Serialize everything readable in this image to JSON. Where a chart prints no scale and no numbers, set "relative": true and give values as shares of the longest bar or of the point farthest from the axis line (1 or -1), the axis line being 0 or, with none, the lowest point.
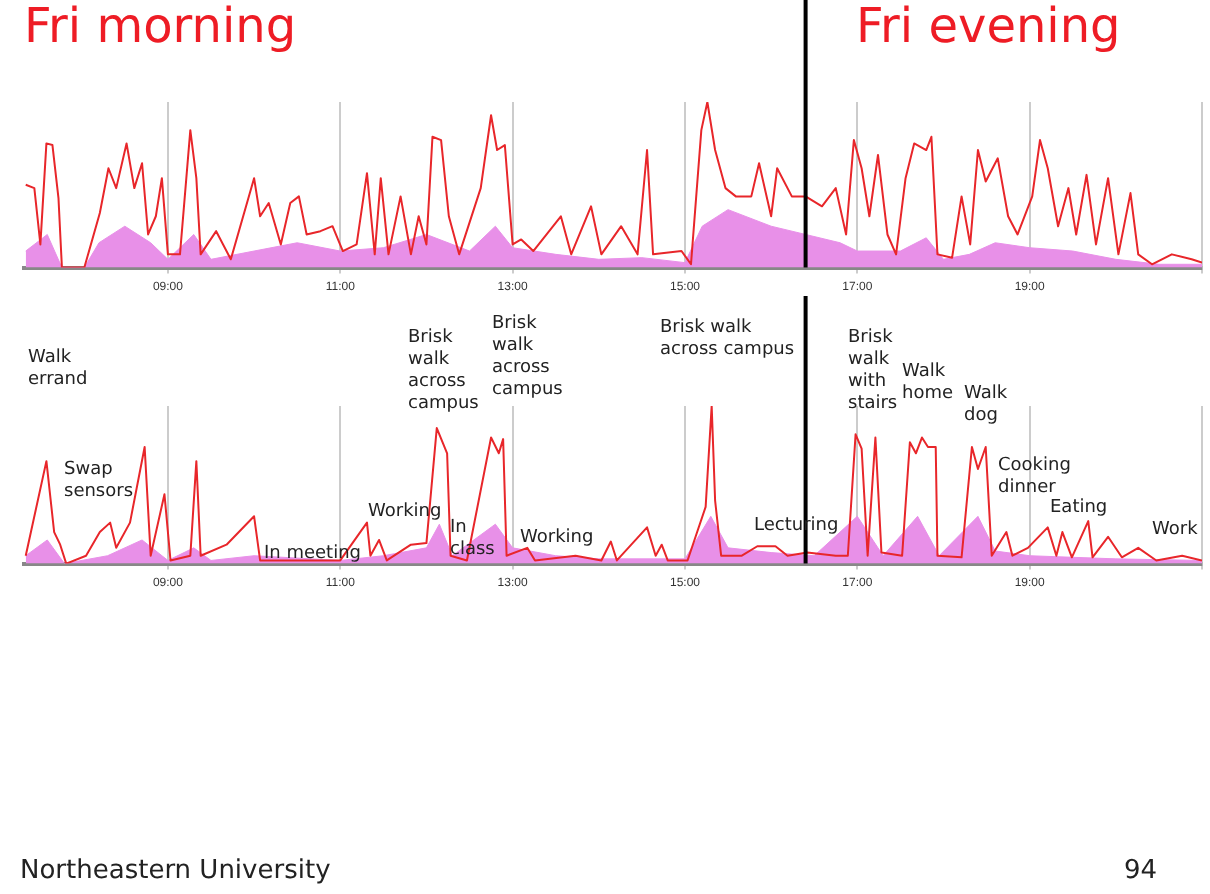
{
  "chart_data": [
    {
      "type": "line",
      "relative": true,
      "grid": "x",
      "legend": false,
      "marker": "none",
      "xlim": [
        7.33,
        21
      ],
      "xticks": [
        {
          "value": 9,
          "label": "09:00"
        },
        {
          "value": 11,
          "label": "11:00"
        },
        {
          "value": 13,
          "label": "13:00"
        },
        {
          "value": 15,
          "label": "15:00"
        },
        {
          "value": 17,
          "label": "17:00"
        },
        {
          "value": 19,
          "label": "19:00"
        },
        {
          "value": 21,
          "label": null
        }
      ],
      "ref_lines": [
        {
          "axis": "x",
          "value": 16.4,
          "color": "#000000"
        }
      ],
      "annotations": [
        "Fri morning",
        "Fri evening"
      ],
      "series": [
        {
          "type": "area",
          "color": "#e890e8",
          "x": [
            7.35,
            7.6,
            7.77,
            8.03,
            8.2,
            8.5,
            8.8,
            9.0,
            9.3,
            9.5,
            10.0,
            10.5,
            11.0,
            11.5,
            12.0,
            12.5,
            12.8,
            13.0,
            13.5,
            14.0,
            14.5,
            15.0,
            15.2,
            15.5,
            16.0,
            16.4,
            16.8,
            17.0,
            17.5,
            17.8,
            18.0,
            18.3,
            18.6,
            19.0,
            19.5,
            20.0,
            20.5,
            21.0
          ],
          "values": [
            0.1,
            0.2,
            0,
            0,
            0.15,
            0.25,
            0.15,
            0.05,
            0.2,
            0.05,
            0.1,
            0.15,
            0.1,
            0.12,
            0.2,
            0.1,
            0.25,
            0.12,
            0.08,
            0.05,
            0.06,
            0.03,
            0.25,
            0.35,
            0.25,
            0.2,
            0.15,
            0.1,
            0.1,
            0.18,
            0.05,
            0.08,
            0.15,
            0.12,
            0.1,
            0.05,
            0.02,
            0.02
          ]
        },
        {
          "type": "line",
          "color": "#e8262a",
          "x": [
            7.35,
            7.45,
            7.52,
            7.59,
            7.66,
            7.73,
            7.77,
            8.03,
            8.21,
            8.31,
            8.4,
            8.52,
            8.61,
            8.7,
            8.77,
            8.86,
            8.93,
            9.0,
            9.14,
            9.26,
            9.33,
            9.38,
            9.56,
            9.73,
            10.0,
            10.07,
            10.17,
            10.31,
            10.42,
            10.52,
            10.61,
            10.77,
            10.91,
            11.03,
            11.19,
            11.31,
            11.4,
            11.47,
            11.56,
            11.7,
            11.82,
            11.91,
            12.0,
            12.07,
            12.17,
            12.26,
            12.38,
            12.63,
            12.75,
            12.82,
            12.91,
            13.0,
            13.1,
            13.24,
            13.56,
            13.68,
            13.91,
            14.03,
            14.26,
            14.45,
            14.56,
            14.63,
            14.96,
            15.07,
            15.19,
            15.26,
            15.35,
            15.47,
            15.59,
            15.77,
            15.86,
            16.0,
            16.07,
            16.24,
            16.4,
            16.59,
            16.75,
            16.87,
            16.96,
            17.05,
            17.14,
            17.24,
            17.35,
            17.45,
            17.56,
            17.66,
            17.8,
            17.86,
            17.93,
            18.1,
            18.21,
            18.31,
            18.4,
            18.49,
            18.63,
            18.75,
            18.86,
            19.03,
            19.12,
            19.21,
            19.33,
            19.45,
            19.54,
            19.66,
            19.77,
            19.91,
            20.03,
            20.17,
            20.26,
            20.42,
            20.65,
            20.88,
            21.0
          ],
          "values": [
            0.5,
            0.48,
            0.14,
            0.75,
            0.74,
            0.42,
            0,
            0,
            0.33,
            0.6,
            0.48,
            0.75,
            0.48,
            0.63,
            0.2,
            0.31,
            0.54,
            0.08,
            0.08,
            0.83,
            0.54,
            0.08,
            0.22,
            0.05,
            0.54,
            0.31,
            0.39,
            0.14,
            0.39,
            0.43,
            0.2,
            0.22,
            0.25,
            0.1,
            0.14,
            0.57,
            0.08,
            0.54,
            0.08,
            0.43,
            0.08,
            0.31,
            0.14,
            0.79,
            0.77,
            0.31,
            0.08,
            0.48,
            0.92,
            0.71,
            0.74,
            0.14,
            0.17,
            0.1,
            0.31,
            0.08,
            0.37,
            0.08,
            0.25,
            0.08,
            0.71,
            0.08,
            0.1,
            0.02,
            0.83,
            1,
            0.71,
            0.48,
            0.43,
            0.43,
            0.63,
            0.31,
            0.6,
            0.43,
            0.43,
            0.37,
            0.48,
            0.2,
            0.77,
            0.6,
            0.31,
            0.68,
            0.2,
            0.08,
            0.54,
            0.75,
            0.71,
            0.79,
            0.08,
            0.06,
            0.43,
            0.14,
            0.71,
            0.52,
            0.66,
            0.31,
            0.2,
            0.43,
            0.77,
            0.6,
            0.25,
            0.48,
            0.2,
            0.56,
            0.14,
            0.54,
            0.08,
            0.45,
            0.08,
            0.02,
            0.08,
            0.05,
            0.03
          ]
        }
      ]
    },
    {
      "type": "line",
      "relative": true,
      "grid": "x",
      "legend": false,
      "marker": "none",
      "xlim": [
        7.33,
        21
      ],
      "xticks": [
        {
          "value": 9,
          "label": "09:00"
        },
        {
          "value": 11,
          "label": "11:00"
        },
        {
          "value": 13,
          "label": "13:00"
        },
        {
          "value": 15,
          "label": "15:00"
        },
        {
          "value": 17,
          "label": "17:00"
        },
        {
          "value": 19,
          "label": "19:00"
        },
        {
          "value": 21,
          "label": null
        }
      ],
      "ref_lines": [
        {
          "axis": "x",
          "value": 16.4,
          "color": "#000000"
        }
      ],
      "annotations": [
        "Walk\nerrand",
        "Swap\nsensors",
        "In meeting",
        "Working",
        "Brisk\nwalk\nacross\ncampus",
        "In\nclass",
        "Brisk\nwalk\nacross\ncampus",
        "Working",
        "Brisk walk\nacross campus",
        "Lecturing",
        "Brisk\nwalk\nwith\nstairs",
        "Walk\nhome",
        "Walk\ndog",
        "Cooking\ndinner",
        "Eating",
        "Work",
        "Northeastern University",
        "94"
      ],
      "series": [
        {
          "type": "area",
          "color": "#e890e8",
          "x": [
            7.35,
            7.6,
            7.8,
            8.3,
            8.7,
            9.0,
            9.3,
            9.5,
            10.0,
            11.0,
            11.5,
            12.0,
            12.15,
            12.3,
            12.8,
            13.0,
            13.5,
            14.0,
            15.0,
            15.3,
            15.5,
            16.0,
            16.5,
            17.0,
            17.3,
            17.7,
            17.95,
            18.4,
            18.6,
            19.0,
            20.0,
            21.0
          ],
          "values": [
            0.05,
            0.15,
            0,
            0.05,
            0.15,
            0.02,
            0.1,
            0.02,
            0.05,
            0.02,
            0.05,
            0.1,
            0.25,
            0.05,
            0.25,
            0.1,
            0.05,
            0.03,
            0.03,
            0.3,
            0.1,
            0.07,
            0.05,
            0.3,
            0.05,
            0.3,
            0.05,
            0.3,
            0.08,
            0.05,
            0.03,
            0.02
          ]
        },
        {
          "type": "line",
          "color": "#e8262a",
          "x": [
            7.35,
            7.59,
            7.68,
            7.75,
            7.82,
            8.05,
            8.21,
            8.33,
            8.4,
            8.56,
            8.73,
            8.8,
            8.96,
            9.03,
            9.26,
            9.33,
            9.38,
            9.68,
            10.0,
            10.07,
            10.54,
            11.0,
            11.31,
            11.35,
            11.45,
            11.54,
            11.82,
            12.0,
            12.12,
            12.24,
            12.28,
            12.47,
            12.75,
            12.84,
            12.89,
            12.93,
            13.17,
            13.26,
            13.73,
            14.03,
            14.14,
            14.21,
            14.56,
            14.66,
            14.73,
            14.8,
            15.03,
            15.24,
            15.31,
            15.35,
            15.42,
            15.66,
            15.84,
            16.05,
            16.19,
            16.42,
            16.75,
            16.89,
            16.98,
            17.05,
            17.12,
            17.21,
            17.28,
            17.52,
            17.61,
            17.68,
            17.75,
            17.82,
            17.91,
            17.93,
            18.21,
            18.33,
            18.4,
            18.49,
            18.56,
            18.73,
            18.8,
            18.98,
            19.21,
            19.31,
            19.38,
            19.49,
            19.68,
            19.73,
            19.91,
            20.07,
            20.26,
            20.47,
            20.77,
            21.0
          ],
          "values": [
            0.05,
            0.65,
            0.2,
            0.12,
            0,
            0.05,
            0.2,
            0.26,
            0.1,
            0.26,
            0.74,
            0.05,
            0.44,
            0.02,
            0.05,
            0.65,
            0.05,
            0.12,
            0.3,
            0.02,
            0.02,
            0.02,
            0.26,
            0.05,
            0.15,
            0.02,
            0.12,
            0.13,
            0.86,
            0.7,
            0.05,
            0.02,
            0.8,
            0.7,
            0.79,
            0.05,
            0.1,
            0.02,
            0.05,
            0.02,
            0.14,
            0.02,
            0.23,
            0.05,
            0.12,
            0.02,
            0.02,
            0.36,
            1,
            0.4,
            0.05,
            0.05,
            0.11,
            0.11,
            0.05,
            0.07,
            0.05,
            0.05,
            0.82,
            0.73,
            0.05,
            0.8,
            0.07,
            0.05,
            0.77,
            0.7,
            0.8,
            0.74,
            0.74,
            0.05,
            0.04,
            0.74,
            0.6,
            0.74,
            0.05,
            0.2,
            0.05,
            0.1,
            0.23,
            0.05,
            0.2,
            0.04,
            0.27,
            0.04,
            0.17,
            0.04,
            0.1,
            0.02,
            0.05,
            0.02
          ]
        }
      ]
    }
  ]
}
